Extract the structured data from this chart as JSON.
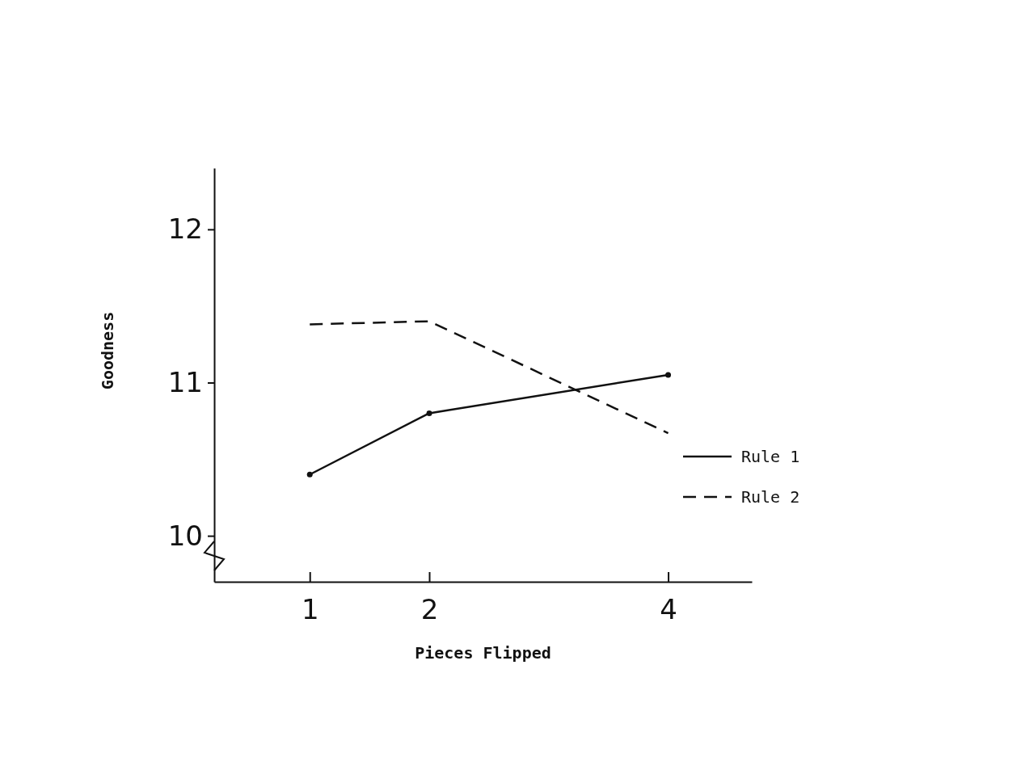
{
  "chart_data": {
    "type": "line",
    "xlabel": "Pieces Flipped",
    "ylabel": "Goodness",
    "x": [
      1,
      2,
      4
    ],
    "xlim": [
      0.2,
      4.7
    ],
    "xticks": [
      1,
      2,
      4
    ],
    "ylim": [
      9.7,
      12.4
    ],
    "yticks": [
      10,
      11,
      12
    ],
    "series": [
      {
        "name": "Rule 1",
        "color": "#111111",
        "values": [
          10.4,
          10.8,
          11.05
        ],
        "line_style": "solid",
        "marker": "circle"
      },
      {
        "name": "Rule 2",
        "color": "#111111",
        "values": [
          11.38,
          11.4,
          10.67
        ],
        "line_style": "dashed",
        "marker": "none"
      }
    ],
    "legend": "right"
  }
}
